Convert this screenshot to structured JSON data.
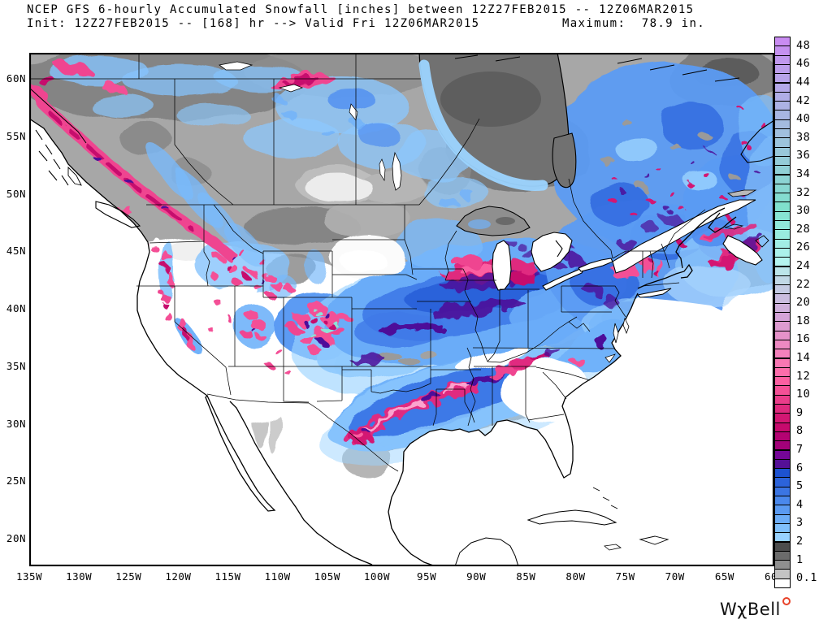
{
  "header": {
    "line1": "NCEP GFS 6-hourly Accumulated Snowfall [inches] between 12Z27FEB2015 -- 12Z06MAR2015",
    "line2": "Init: 12Z27FEB2015 -- [168] hr --> Valid Fri 12Z06MAR2015",
    "maximum_label": "Maximum:  78.9 in."
  },
  "map": {
    "x_axis_labels": [
      "135W",
      "130W",
      "125W",
      "120W",
      "115W",
      "110W",
      "105W",
      "100W",
      "95W",
      "90W",
      "85W",
      "80W",
      "75W",
      "70W",
      "65W",
      "60W"
    ],
    "y_axis_labels": [
      "60N",
      "55N",
      "50N",
      "45N",
      "40N",
      "35N",
      "30N",
      "25N",
      "20N"
    ]
  },
  "colorbar": {
    "unit": "inches",
    "labels": [
      "48",
      "46",
      "44",
      "42",
      "40",
      "38",
      "36",
      "34",
      "32",
      "30",
      "28",
      "26",
      "24",
      "22",
      "20",
      "18",
      "16",
      "14",
      "12",
      "10",
      "9",
      "8",
      "7",
      "6",
      "5",
      "4",
      "3",
      "2",
      "1",
      "0.1"
    ],
    "cell_colors": [
      "#c98cf2",
      "#c591f0",
      "#c098ee",
      "#bc9eec",
      "#b8a3ea",
      "#b4a8e8",
      "#b0ade6",
      "#acb2e4",
      "#a8b6e2",
      "#a4bbe0",
      "#a0bfde",
      "#9cc4dc",
      "#98c8da",
      "#94ccd8",
      "#90d0d6",
      "#8cd4d4",
      "#88d8d2",
      "#84dccf",
      "#80e0cd",
      "#87e4d3",
      "#90e8d9",
      "#99ebdf",
      "#a2eee5",
      "#abf1ea",
      "#b4f4ef",
      "#bce5ea",
      "#c1d8e6",
      "#c5cbe3",
      "#cabddf",
      "#cfb0db",
      "#d4a3d7",
      "#dd9bd0",
      "#e592c9",
      "#ed89c2",
      "#f380bb",
      "#f877b3",
      "#fc6dab",
      "#fb5fa1",
      "#f45096",
      "#ea3d8a",
      "#df2a7e",
      "#d31773",
      "#c60a6d",
      "#b40372",
      "#a20178",
      "#740697",
      "#551097",
      "#1d52d1",
      "#2c63da",
      "#3b75e3",
      "#4a88ec",
      "#5a9af2",
      "#6cadf8",
      "#80c0fc",
      "#98d2ff",
      "#4c4c4c",
      "#6b6b6b",
      "#8f8f8f",
      "#c3c3c3",
      "#ffffff"
    ]
  },
  "logo": {
    "text": "WχBell",
    "ring_color": "#e8432a"
  }
}
